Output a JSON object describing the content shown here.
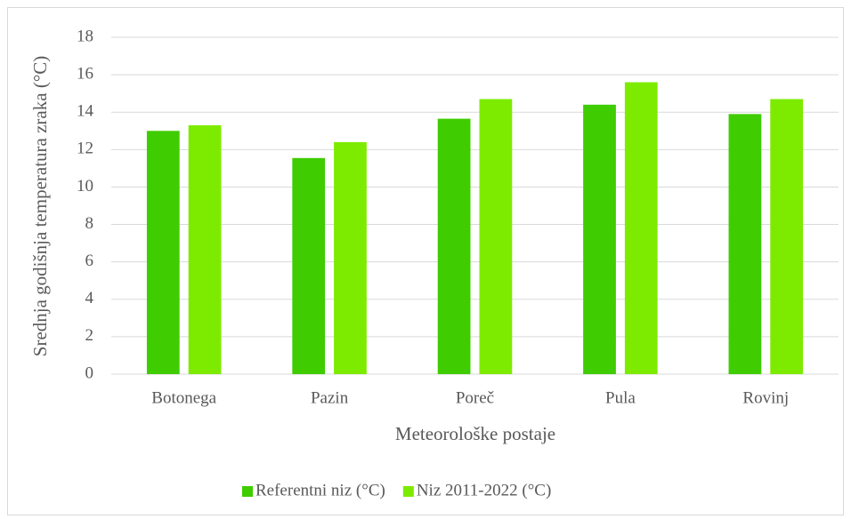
{
  "chart_data": {
    "type": "bar",
    "categories": [
      "Botonega",
      "Pazin",
      "Poreč",
      "Pula",
      "Rovinj"
    ],
    "series": [
      {
        "name": "Referentni niz (°C)",
        "color": "#3fcc00",
        "values": [
          13.0,
          11.55,
          13.65,
          14.4,
          13.9
        ]
      },
      {
        "name": "Niz 2011-2022 (°C)",
        "color": "#7deb00",
        "values": [
          13.3,
          12.4,
          14.7,
          15.6,
          14.7
        ]
      }
    ],
    "xlabel": "Meteorološke postaje",
    "ylabel": "Srednja godišnja temperatura zraka (°C)",
    "ylim": [
      0,
      18
    ],
    "yticks": [
      0,
      2,
      4,
      6,
      8,
      10,
      12,
      14,
      16,
      18
    ],
    "grid": true,
    "legend": "bottom"
  }
}
